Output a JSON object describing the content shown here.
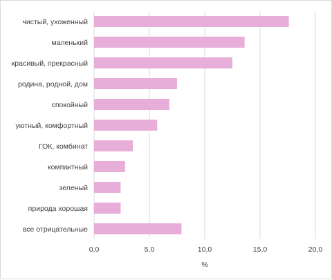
{
  "chart_data": {
    "type": "bar",
    "orientation": "horizontal",
    "categories": [
      "чистый, ухоженный",
      "маленький",
      "красивый, прекрасный",
      "родина, родной, дом",
      "спокойный",
      "уютный, комфортный",
      "ГОК, комбинат",
      "компактный",
      "зеленый",
      "природа хорошая",
      "все отрицательные"
    ],
    "values": [
      17.6,
      13.6,
      12.5,
      7.5,
      6.8,
      5.7,
      3.5,
      2.8,
      2.4,
      2.4,
      7.9
    ],
    "xlabel": "%",
    "xlim": [
      0,
      20
    ],
    "xticks": [
      "0,0",
      "5,0",
      "10,0",
      "15,0",
      "20,0"
    ],
    "grid": true,
    "bar_color": "#e6aed8"
  }
}
